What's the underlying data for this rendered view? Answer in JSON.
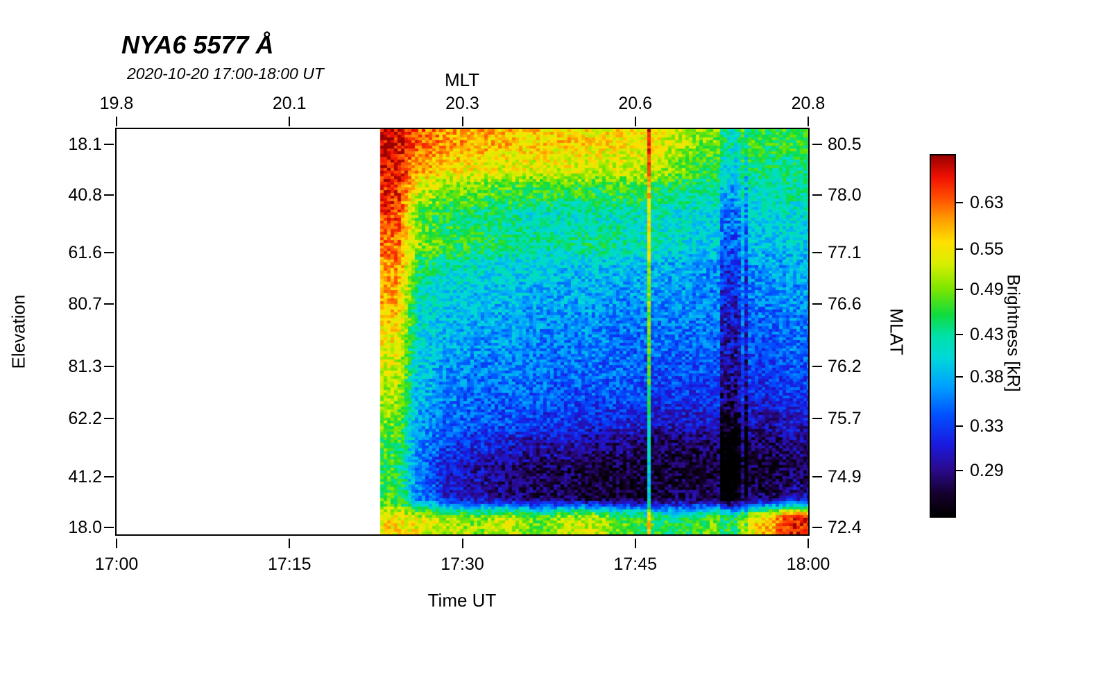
{
  "chart_data": {
    "type": "heatmap",
    "title": "NYA6 5577 Å",
    "subtitle": "2020-10-20 17:00-18:00 UT",
    "axes": {
      "top": {
        "label": "MLT",
        "ticks": [
          {
            "pos": 0.0,
            "label": "19.8"
          },
          {
            "pos": 0.25,
            "label": "20.1"
          },
          {
            "pos": 0.5,
            "label": "20.3"
          },
          {
            "pos": 0.75,
            "label": "20.6"
          },
          {
            "pos": 1.0,
            "label": "20.8"
          }
        ]
      },
      "bottom": {
        "label": "Time UT",
        "ticks": [
          {
            "pos": 0.0,
            "label": "17:00"
          },
          {
            "pos": 0.25,
            "label": "17:15"
          },
          {
            "pos": 0.5,
            "label": "17:30"
          },
          {
            "pos": 0.75,
            "label": "17:45"
          },
          {
            "pos": 1.0,
            "label": "18:00"
          }
        ]
      },
      "left": {
        "label": "Elevation",
        "ticks": [
          {
            "pos": 0.038,
            "label": "18.1"
          },
          {
            "pos": 0.163,
            "label": "40.8"
          },
          {
            "pos": 0.305,
            "label": "61.6"
          },
          {
            "pos": 0.431,
            "label": "80.7"
          },
          {
            "pos": 0.586,
            "label": "81.3"
          },
          {
            "pos": 0.714,
            "label": "62.2"
          },
          {
            "pos": 0.858,
            "label": "41.2"
          },
          {
            "pos": 0.983,
            "label": "18.0"
          }
        ]
      },
      "right": {
        "label": "MLAT",
        "ticks": [
          {
            "pos": 0.038,
            "label": "80.5"
          },
          {
            "pos": 0.163,
            "label": "78.0"
          },
          {
            "pos": 0.305,
            "label": "77.1"
          },
          {
            "pos": 0.431,
            "label": "76.6"
          },
          {
            "pos": 0.586,
            "label": "76.2"
          },
          {
            "pos": 0.714,
            "label": "75.7"
          },
          {
            "pos": 0.858,
            "label": "74.9"
          },
          {
            "pos": 0.983,
            "label": "72.4"
          }
        ]
      }
    },
    "colorbar": {
      "label": "Brightness [kR]",
      "scale": "log",
      "range_kr": [
        0.255,
        0.725
      ],
      "ticks": [
        "0.63",
        "0.55",
        "0.49",
        "0.43",
        "0.38",
        "0.33",
        "0.29"
      ],
      "gradient_stops": [
        {
          "pos": 0.0,
          "color": "#000000"
        },
        {
          "pos": 0.06,
          "color": "#14002a"
        },
        {
          "pos": 0.13,
          "color": "#2b0a8c"
        },
        {
          "pos": 0.2,
          "color": "#1a1ae0"
        },
        {
          "pos": 0.28,
          "color": "#0050ff"
        },
        {
          "pos": 0.36,
          "color": "#00a0ff"
        },
        {
          "pos": 0.44,
          "color": "#00d8d8"
        },
        {
          "pos": 0.5,
          "color": "#00e0a8"
        },
        {
          "pos": 0.56,
          "color": "#10dc3c"
        },
        {
          "pos": 0.63,
          "color": "#7ce600"
        },
        {
          "pos": 0.7,
          "color": "#d8ee00"
        },
        {
          "pos": 0.76,
          "color": "#ffe000"
        },
        {
          "pos": 0.82,
          "color": "#ffa000"
        },
        {
          "pos": 0.88,
          "color": "#ff5000"
        },
        {
          "pos": 0.94,
          "color": "#f01000"
        },
        {
          "pos": 1.0,
          "color": "#980000"
        }
      ]
    },
    "heatmap": {
      "time_range_min": [
        0,
        60
      ],
      "data_start_min": 22.8,
      "noise": 0.085,
      "features": {
        "bright_line": {
          "time_min": 46.25,
          "boost": 0.13
        },
        "dark_striations": {
          "time_range_min": [
            52.5,
            55.2
          ],
          "depth": 0.05
        }
      },
      "values_kr_rows_top_to_bottom": [
        [
          0.7,
          0.63,
          0.6,
          0.59,
          0.58,
          0.57,
          0.57,
          0.56,
          0.56,
          0.55,
          0.52,
          0.49,
          0.47,
          0.46,
          0.46
        ],
        [
          0.69,
          0.59,
          0.56,
          0.55,
          0.54,
          0.54,
          0.54,
          0.53,
          0.53,
          0.52,
          0.49,
          0.46,
          0.45,
          0.44,
          0.44
        ],
        [
          0.67,
          0.52,
          0.49,
          0.48,
          0.47,
          0.46,
          0.46,
          0.46,
          0.46,
          0.45,
          0.44,
          0.43,
          0.42,
          0.42,
          0.43
        ],
        [
          0.65,
          0.47,
          0.45,
          0.44,
          0.43,
          0.42,
          0.42,
          0.42,
          0.42,
          0.42,
          0.41,
          0.4,
          0.4,
          0.4,
          0.41
        ],
        [
          0.63,
          0.5,
          0.47,
          0.45,
          0.44,
          0.43,
          0.43,
          0.44,
          0.43,
          0.42,
          0.41,
          0.4,
          0.39,
          0.39,
          0.4
        ],
        [
          0.61,
          0.44,
          0.42,
          0.41,
          0.4,
          0.4,
          0.39,
          0.39,
          0.39,
          0.38,
          0.38,
          0.37,
          0.37,
          0.37,
          0.38
        ],
        [
          0.59,
          0.42,
          0.4,
          0.39,
          0.39,
          0.38,
          0.38,
          0.38,
          0.37,
          0.37,
          0.37,
          0.36,
          0.36,
          0.36,
          0.37
        ],
        [
          0.57,
          0.41,
          0.39,
          0.38,
          0.38,
          0.37,
          0.37,
          0.37,
          0.36,
          0.36,
          0.36,
          0.36,
          0.35,
          0.35,
          0.36
        ],
        [
          0.55,
          0.4,
          0.38,
          0.37,
          0.37,
          0.36,
          0.36,
          0.36,
          0.35,
          0.35,
          0.35,
          0.35,
          0.35,
          0.34,
          0.35
        ],
        [
          0.53,
          0.39,
          0.37,
          0.36,
          0.36,
          0.36,
          0.35,
          0.35,
          0.35,
          0.34,
          0.34,
          0.34,
          0.34,
          0.33,
          0.34
        ],
        [
          0.51,
          0.38,
          0.36,
          0.35,
          0.35,
          0.35,
          0.34,
          0.34,
          0.34,
          0.33,
          0.33,
          0.33,
          0.33,
          0.32,
          0.33
        ],
        [
          0.49,
          0.37,
          0.35,
          0.34,
          0.34,
          0.33,
          0.33,
          0.32,
          0.32,
          0.31,
          0.31,
          0.31,
          0.31,
          0.3,
          0.31
        ],
        [
          0.47,
          0.36,
          0.33,
          0.32,
          0.31,
          0.3,
          0.3,
          0.29,
          0.29,
          0.28,
          0.28,
          0.28,
          0.29,
          0.28,
          0.29
        ],
        [
          0.46,
          0.35,
          0.31,
          0.3,
          0.29,
          0.28,
          0.28,
          0.27,
          0.27,
          0.27,
          0.27,
          0.27,
          0.28,
          0.27,
          0.28
        ],
        [
          0.47,
          0.36,
          0.31,
          0.3,
          0.29,
          0.28,
          0.28,
          0.27,
          0.27,
          0.27,
          0.28,
          0.28,
          0.29,
          0.28,
          0.3
        ],
        [
          0.56,
          0.54,
          0.52,
          0.5,
          0.53,
          0.48,
          0.52,
          0.53,
          0.48,
          0.46,
          0.45,
          0.48,
          0.5,
          0.58,
          0.68
        ]
      ]
    }
  }
}
